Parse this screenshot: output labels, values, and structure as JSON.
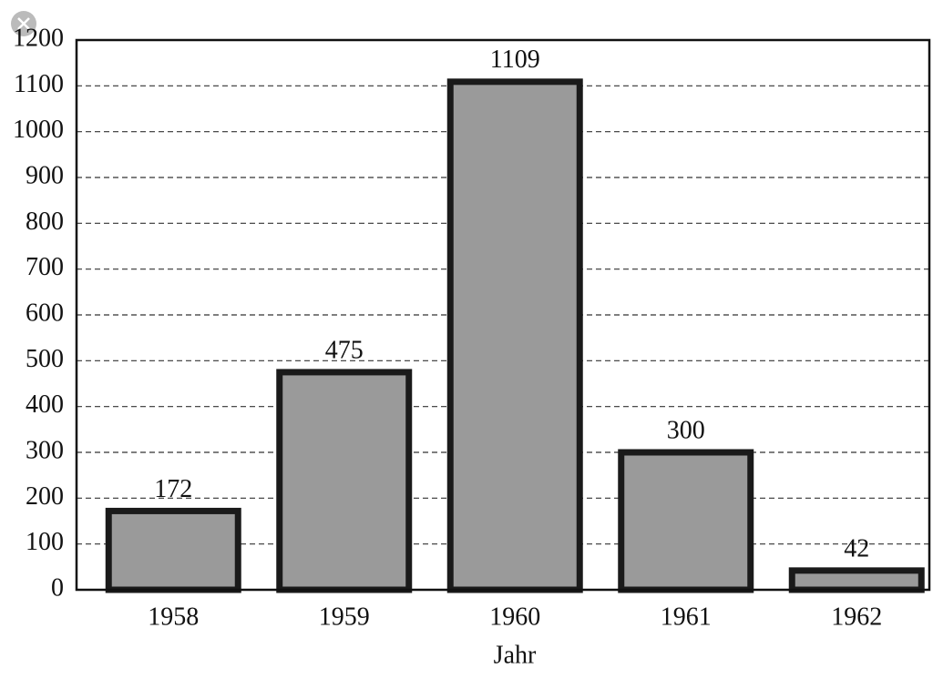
{
  "chart_data": {
    "type": "bar",
    "x_label": "Jahr",
    "categories": [
      "1958",
      "1959",
      "1960",
      "1961",
      "1962"
    ],
    "values": [
      172,
      475,
      1109,
      300,
      42
    ],
    "color": "#9a9a9a",
    "edge_color": "#1a1a1a",
    "ylim": [
      0,
      1200
    ],
    "yticks": [
      0,
      100,
      200,
      300,
      400,
      500,
      600,
      700,
      800,
      900,
      1000,
      1100,
      1200
    ],
    "grid": true
  }
}
